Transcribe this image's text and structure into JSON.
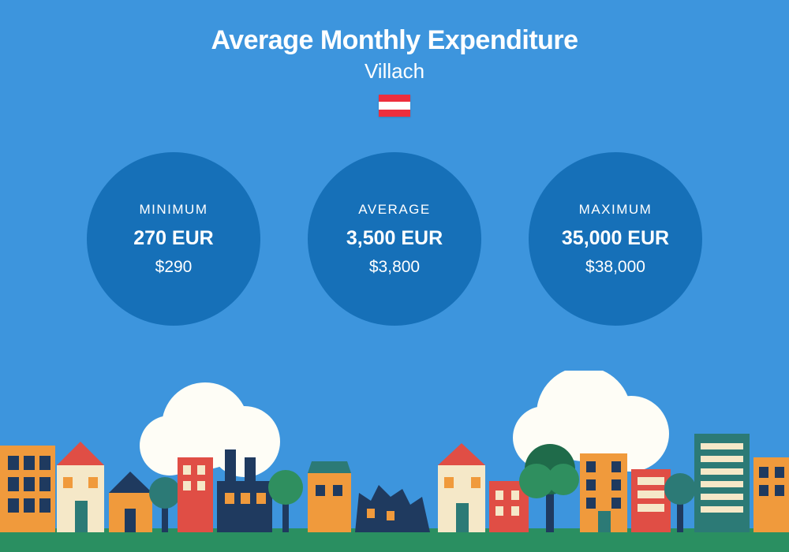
{
  "background_color": "#3d95dd",
  "header": {
    "title": "Average Monthly Expenditure",
    "subtitle": "Villach",
    "title_color": "#ffffff",
    "flag_stripe_color": "#ed2e3d"
  },
  "stats": {
    "circle_color": "#1670b8",
    "text_color": "#ffffff",
    "items": [
      {
        "label": "MINIMUM",
        "primary": "270 EUR",
        "secondary": "$290"
      },
      {
        "label": "AVERAGE",
        "primary": "3,500 EUR",
        "secondary": "$3,800"
      },
      {
        "label": "MAXIMUM",
        "primary": "35,000 EUR",
        "secondary": "$38,000"
      }
    ]
  },
  "cityscape": {
    "ground_color": "#2a8f61",
    "cloud_color": "#fefdf6",
    "palette": {
      "orange": "#f09a3c",
      "red": "#e04e45",
      "teal": "#2c7a76",
      "navy": "#1f3a5f",
      "cream": "#f5e8c8",
      "green_tree": "#2f8f5f",
      "dark_green": "#1f6b4a"
    }
  }
}
